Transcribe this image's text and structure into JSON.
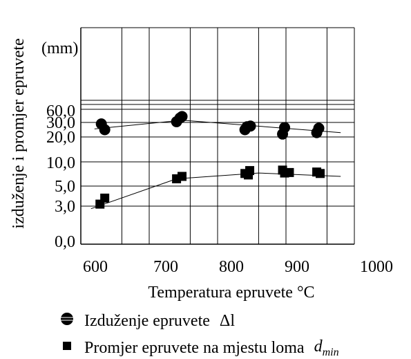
{
  "chart_data": {
    "type": "scatter",
    "ylabel": "izduženje i promjer epruvete",
    "y_unit_label": "(mm)",
    "xlabel": "Temperatura epruvete °C",
    "x_ticks": [
      "600",
      "700",
      "800",
      "900",
      "1000"
    ],
    "y_tick_labels": [
      "0,0",
      "3,0",
      "5,0",
      "10,0",
      "20,0",
      "30,0",
      "60,0"
    ],
    "xlim": [
      600,
      1000
    ],
    "grid": true,
    "legend_position": "bottom",
    "series": [
      {
        "name": "Izduženje epruvete",
        "symbol": "Δl",
        "marker": "circle",
        "points": [
          [
            630,
            29
          ],
          [
            635,
            25
          ],
          [
            740,
            31
          ],
          [
            745,
            36
          ],
          [
            748,
            38
          ],
          [
            840,
            25
          ],
          [
            843,
            27
          ],
          [
            848,
            27.5
          ],
          [
            895,
            22
          ],
          [
            898,
            26.5
          ],
          [
            945,
            23
          ],
          [
            948,
            26
          ]
        ],
        "trend": [
          [
            620,
            25.5
          ],
          [
            748,
            33
          ],
          [
            980,
            23
          ]
        ]
      },
      {
        "name": "Promjer epruvete na mjestu loma",
        "symbol": "d",
        "symbol_sub": "min",
        "marker": "square",
        "points": [
          [
            628,
            3.2
          ],
          [
            635,
            3.8
          ],
          [
            740,
            6.5
          ],
          [
            748,
            7
          ],
          [
            840,
            7.6
          ],
          [
            845,
            7.3
          ],
          [
            847,
            8.2
          ],
          [
            895,
            8.3
          ],
          [
            898,
            7.7
          ],
          [
            905,
            7.8
          ],
          [
            945,
            7.9
          ],
          [
            950,
            7.6
          ]
        ],
        "trend": [
          [
            615,
            2.8
          ],
          [
            740,
            6.5
          ],
          [
            860,
            7.7
          ],
          [
            980,
            7
          ]
        ]
      }
    ]
  }
}
